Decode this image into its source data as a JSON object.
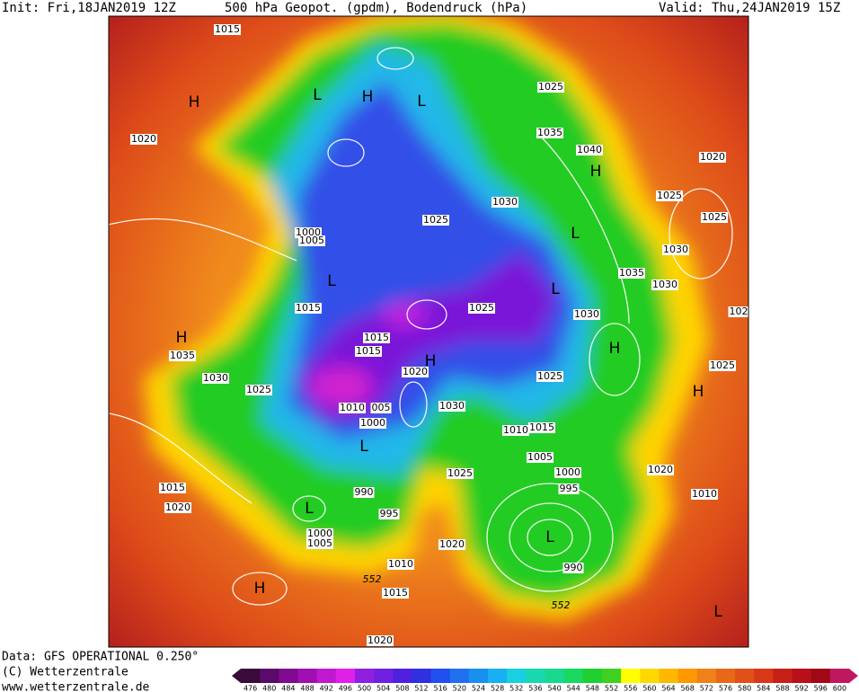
{
  "header": {
    "init": "Init: Fri,18JAN2019 12Z",
    "title": "500 hPa Geopot. (gpdm), Bodendruck (hPa)",
    "valid": "Valid: Thu,24JAN2019 15Z"
  },
  "footer": {
    "data": "Data: GFS OPERATIONAL 0.250°",
    "copyright": "(C) Wetterzentrale",
    "url": "www.wetterzentrale.de"
  },
  "map": {
    "isobar_labels": [
      "1015",
      "1025",
      "1035",
      "1040",
      "1020",
      "1020",
      "1025",
      "1025",
      "1030",
      "1025",
      "1000",
      "1005",
      "1030",
      "1035",
      "1030",
      "1015",
      "1025",
      "1030",
      "102",
      "1015",
      "1015",
      "1035",
      "1020",
      "1025",
      "1030",
      "1025",
      "1025",
      "1030",
      "1010",
      "005",
      "1000",
      "1010",
      "1015",
      "1005",
      "1000",
      "1025",
      "1020",
      "995",
      "990",
      "1010",
      "1015",
      "1020",
      "995",
      "1000",
      "1005",
      "1020",
      "990",
      "1010",
      "1015",
      "1020"
    ],
    "height_labels": [
      "552",
      "552"
    ],
    "pressure_centers": [
      "H",
      "L",
      "H",
      "L",
      "H",
      "L",
      "L",
      "L",
      "H",
      "H",
      "H",
      "H",
      "L",
      "L",
      "L",
      "H",
      "L"
    ]
  },
  "colorbar": {
    "labels": [
      476,
      480,
      484,
      488,
      492,
      496,
      500,
      504,
      508,
      512,
      516,
      520,
      524,
      528,
      532,
      536,
      540,
      544,
      548,
      552,
      556,
      560,
      564,
      568,
      572,
      576,
      580,
      584,
      588,
      592,
      596,
      600
    ]
  }
}
